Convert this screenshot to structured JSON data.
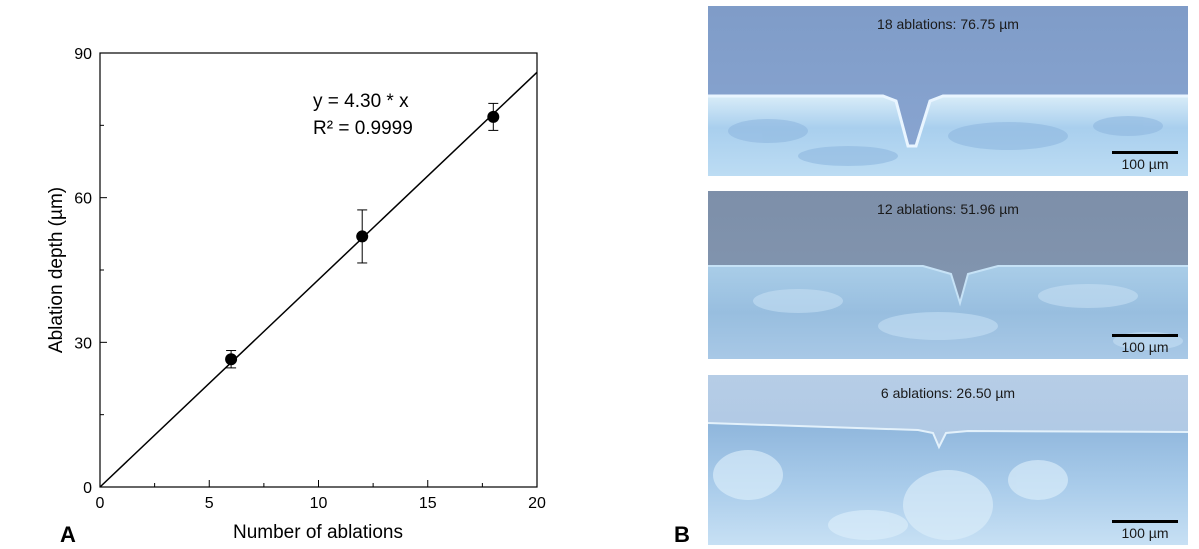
{
  "chart_data": {
    "type": "scatter",
    "xlabel": "Number of ablations",
    "ylabel": "Ablation depth (µm)",
    "xlim": [
      0,
      20
    ],
    "ylim": [
      0,
      90
    ],
    "x_ticks": [
      "0",
      "5",
      "10",
      "15",
      "20"
    ],
    "y_ticks": [
      "0",
      "30",
      "60",
      "90"
    ],
    "points": [
      {
        "x": 6,
        "y": 26.5,
        "err": 1.8
      },
      {
        "x": 12,
        "y": 51.96,
        "err": 5.5
      },
      {
        "x": 18,
        "y": 76.75,
        "err": 2.8
      }
    ],
    "fit": {
      "slope": 4.3,
      "intercept": 0
    },
    "annotation": {
      "equation": "y = 4.30 * x",
      "r2": "R² = 0.9999"
    },
    "grid": false,
    "colors": {
      "marker": "#000000",
      "line": "#000000"
    }
  },
  "panels": {
    "a_label": "A",
    "b_label": "B"
  },
  "micrographs": [
    {
      "caption": "18 ablations: 76.75 µm",
      "scale_label": "100 µm"
    },
    {
      "caption": "12 ablations: 51.96 µm",
      "scale_label": "100 µm"
    },
    {
      "caption": "6 ablations: 26.50 µm",
      "scale_label": "100 µm"
    }
  ]
}
